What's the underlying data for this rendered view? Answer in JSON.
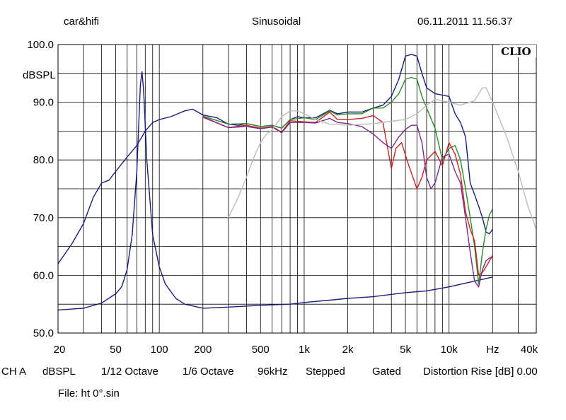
{
  "header": {
    "left": "car&hifi",
    "center": "Sinusoidal",
    "right": "06.11.2011 11.56.37"
  },
  "logo": "CLIO",
  "footer": {
    "items": [
      "CH A",
      "dBSPL",
      "1/12 Octave",
      "1/6 Octave",
      "96kHz",
      "Stepped",
      "Gated",
      "Distortion Rise [dB] 0.00"
    ],
    "file": "File: ht 0°.sin"
  },
  "chart_data": {
    "type": "line",
    "title": "Sinusoidal",
    "xlabel": "Hz",
    "ylabel": "dBSPL",
    "xscale": "log",
    "xlim": [
      20,
      40000
    ],
    "ylim": [
      50,
      100
    ],
    "grid": true,
    "legend": "none",
    "x_ticks": [
      {
        "value": 20,
        "label": "20"
      },
      {
        "value": 50,
        "label": "50"
      },
      {
        "value": 100,
        "label": "100"
      },
      {
        "value": 200,
        "label": "200"
      },
      {
        "value": 500,
        "label": "500"
      },
      {
        "value": 1000,
        "label": "1k"
      },
      {
        "value": 2000,
        "label": "2k"
      },
      {
        "value": 5000,
        "label": "5k"
      },
      {
        "value": 10000,
        "label": "10k"
      },
      {
        "value": 20000,
        "label": "Hz"
      },
      {
        "value": 40000,
        "label": "40k"
      }
    ],
    "y_ticks": [
      {
        "value": 100,
        "label": "100.0"
      },
      {
        "value": 90,
        "label": "90.0"
      },
      {
        "value": 80,
        "label": "80.0"
      },
      {
        "value": 70,
        "label": "70.0"
      },
      {
        "value": 60,
        "label": "60.0"
      },
      {
        "value": 50,
        "label": "50.0"
      }
    ],
    "series": [
      {
        "color": "#1c1c7a",
        "points": [
          [
            20,
            62
          ],
          [
            25,
            65.5
          ],
          [
            30,
            69
          ],
          [
            35,
            73.5
          ],
          [
            40,
            76
          ],
          [
            45,
            76.5
          ],
          [
            50,
            78
          ],
          [
            60,
            80.5
          ],
          [
            70,
            82.5
          ],
          [
            80,
            85
          ],
          [
            90,
            86.5
          ],
          [
            100,
            87
          ],
          [
            120,
            87.5
          ],
          [
            150,
            88.5
          ],
          [
            170,
            88.8
          ],
          [
            200,
            87.8
          ],
          [
            250,
            87.3
          ],
          [
            300,
            86.2
          ],
          [
            350,
            86
          ],
          [
            400,
            86.3
          ],
          [
            500,
            85.8
          ],
          [
            600,
            86
          ],
          [
            700,
            85.5
          ],
          [
            800,
            87
          ],
          [
            900,
            87.5
          ],
          [
            1000,
            87.3
          ],
          [
            1200,
            87.3
          ],
          [
            1500,
            88.6
          ],
          [
            1700,
            88
          ],
          [
            2000,
            88.3
          ],
          [
            2500,
            88.3
          ],
          [
            3000,
            89
          ],
          [
            3500,
            89.5
          ],
          [
            4000,
            91
          ],
          [
            4500,
            94
          ],
          [
            5000,
            98
          ],
          [
            5500,
            98.3
          ],
          [
            6000,
            98
          ],
          [
            6500,
            95
          ],
          [
            7000,
            92.5
          ],
          [
            8000,
            91.5
          ],
          [
            10000,
            91
          ],
          [
            11000,
            88
          ],
          [
            12000,
            86.5
          ],
          [
            13000,
            84
          ],
          [
            14000,
            76
          ],
          [
            15000,
            74
          ],
          [
            16000,
            72
          ],
          [
            17000,
            70
          ],
          [
            18000,
            67.5
          ],
          [
            19000,
            67.2
          ],
          [
            20000,
            68
          ]
        ]
      },
      {
        "color": "#1c1c7a",
        "points": [
          [
            20,
            54
          ],
          [
            30,
            54.3
          ],
          [
            40,
            55.2
          ],
          [
            50,
            56.8
          ],
          [
            55,
            58
          ],
          [
            60,
            61
          ],
          [
            65,
            67
          ],
          [
            70,
            78
          ],
          [
            74,
            93
          ],
          [
            76,
            95.3
          ],
          [
            78,
            92
          ],
          [
            82,
            80
          ],
          [
            90,
            67
          ],
          [
            100,
            61.5
          ],
          [
            110,
            58.5
          ],
          [
            130,
            56
          ],
          [
            150,
            55
          ],
          [
            200,
            54.3
          ],
          [
            300,
            54.5
          ],
          [
            500,
            54.8
          ],
          [
            800,
            55
          ],
          [
            1000,
            55.3
          ],
          [
            1500,
            55.7
          ],
          [
            2000,
            56
          ],
          [
            3000,
            56.3
          ],
          [
            5000,
            57
          ],
          [
            7000,
            57.3
          ],
          [
            10000,
            58
          ],
          [
            15000,
            59
          ],
          [
            20000,
            59.7
          ]
        ]
      },
      {
        "color": "#2a8a2a",
        "points": [
          [
            200,
            87.6
          ],
          [
            300,
            86.2
          ],
          [
            400,
            86.3
          ],
          [
            500,
            85.8
          ],
          [
            600,
            86
          ],
          [
            700,
            85.5
          ],
          [
            800,
            87
          ],
          [
            1000,
            87.3
          ],
          [
            1200,
            87
          ],
          [
            1500,
            88.5
          ],
          [
            1700,
            87.8
          ],
          [
            2000,
            88
          ],
          [
            2500,
            88
          ],
          [
            3000,
            89
          ],
          [
            3500,
            89
          ],
          [
            4000,
            90
          ],
          [
            4500,
            91.5
          ],
          [
            5000,
            94
          ],
          [
            5500,
            94.3
          ],
          [
            6000,
            94
          ],
          [
            6500,
            91
          ],
          [
            7000,
            89
          ],
          [
            8000,
            85.5
          ],
          [
            9000,
            80
          ],
          [
            10000,
            82
          ],
          [
            11000,
            82.5
          ],
          [
            12000,
            80
          ],
          [
            13000,
            75
          ],
          [
            14000,
            70
          ],
          [
            15000,
            65
          ],
          [
            16000,
            58.5
          ],
          [
            17000,
            64
          ],
          [
            18000,
            68
          ],
          [
            19000,
            70.5
          ],
          [
            20000,
            71.5
          ]
        ]
      },
      {
        "color": "#cc2222",
        "points": [
          [
            200,
            87.5
          ],
          [
            300,
            85.6
          ],
          [
            400,
            86
          ],
          [
            500,
            85.5
          ],
          [
            600,
            85.8
          ],
          [
            700,
            84.8
          ],
          [
            800,
            86.8
          ],
          [
            1000,
            86.6
          ],
          [
            1200,
            86.5
          ],
          [
            1500,
            88.3
          ],
          [
            1700,
            87
          ],
          [
            2000,
            87
          ],
          [
            2500,
            87.2
          ],
          [
            3000,
            87.7
          ],
          [
            3500,
            86.5
          ],
          [
            4000,
            78.5
          ],
          [
            4300,
            82
          ],
          [
            4700,
            83
          ],
          [
            5200,
            79.5
          ],
          [
            6000,
            75
          ],
          [
            6500,
            77
          ],
          [
            7000,
            80
          ],
          [
            8000,
            81.5
          ],
          [
            9000,
            79
          ],
          [
            10000,
            83
          ],
          [
            11000,
            81
          ],
          [
            12000,
            77.5
          ],
          [
            13000,
            71
          ],
          [
            14000,
            68
          ],
          [
            15000,
            66
          ],
          [
            16000,
            60
          ],
          [
            17000,
            60.5
          ],
          [
            18000,
            61.5
          ],
          [
            19000,
            62.5
          ],
          [
            20000,
            63.5
          ]
        ]
      },
      {
        "color": "#7a2a8a",
        "points": [
          [
            200,
            87.4
          ],
          [
            300,
            85.6
          ],
          [
            400,
            85.8
          ],
          [
            500,
            85.4
          ],
          [
            600,
            85.7
          ],
          [
            700,
            84.7
          ],
          [
            800,
            86.5
          ],
          [
            1000,
            86.5
          ],
          [
            1200,
            86.4
          ],
          [
            1500,
            87.2
          ],
          [
            1700,
            86.5
          ],
          [
            2000,
            86.3
          ],
          [
            2500,
            85.8
          ],
          [
            3000,
            84.5
          ],
          [
            3500,
            83
          ],
          [
            4000,
            82
          ],
          [
            4500,
            84
          ],
          [
            5000,
            85.3
          ],
          [
            5500,
            86
          ],
          [
            6000,
            86
          ],
          [
            6500,
            83
          ],
          [
            7000,
            77
          ],
          [
            7500,
            75
          ],
          [
            8000,
            76
          ],
          [
            9000,
            80.5
          ],
          [
            10000,
            81
          ],
          [
            11000,
            78
          ],
          [
            12000,
            76
          ],
          [
            13000,
            70
          ],
          [
            14000,
            64
          ],
          [
            15000,
            59
          ],
          [
            16000,
            58
          ],
          [
            17000,
            61
          ],
          [
            18000,
            62.5
          ],
          [
            19000,
            63
          ],
          [
            20000,
            63.2
          ]
        ]
      },
      {
        "color": "#bdbdbd",
        "points": [
          [
            300,
            70
          ],
          [
            350,
            73.5
          ],
          [
            400,
            77
          ],
          [
            450,
            80.5
          ],
          [
            500,
            83
          ],
          [
            550,
            84.5
          ],
          [
            600,
            85.2
          ],
          [
            700,
            87.5
          ],
          [
            800,
            88.5
          ],
          [
            900,
            88.5
          ],
          [
            1000,
            88
          ],
          [
            1200,
            87
          ],
          [
            1500,
            86.2
          ],
          [
            2000,
            86
          ],
          [
            3000,
            86.3
          ],
          [
            4000,
            86.7
          ],
          [
            5000,
            87
          ],
          [
            6000,
            88
          ],
          [
            7000,
            89.5
          ],
          [
            8000,
            90.5
          ],
          [
            10000,
            90
          ],
          [
            12000,
            89.5
          ],
          [
            15000,
            90.3
          ],
          [
            17000,
            92.5
          ],
          [
            18000,
            92.5
          ],
          [
            20000,
            90
          ],
          [
            25000,
            84
          ],
          [
            30000,
            78
          ],
          [
            35000,
            72
          ],
          [
            40000,
            68
          ]
        ]
      }
    ]
  }
}
